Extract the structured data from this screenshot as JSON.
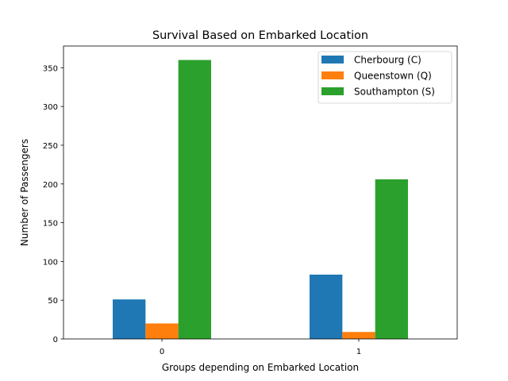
{
  "chart_data": {
    "type": "bar",
    "title": "Survival Based on Embarked Location",
    "xlabel": "Groups depending on Embarked Location",
    "ylabel": "Number of Passengers",
    "categories": [
      "0",
      "1"
    ],
    "ylim": [
      0,
      378
    ],
    "yticks": [
      0,
      50,
      100,
      150,
      200,
      250,
      300,
      350
    ],
    "legend_position": "top-right",
    "series": [
      {
        "name": "Cherbourg (C)",
        "color": "#1f77b4",
        "values": [
          51,
          83
        ]
      },
      {
        "name": "Queenstown (Q)",
        "color": "#ff7f0e",
        "values": [
          20,
          9
        ]
      },
      {
        "name": "Southampton (S)",
        "color": "#2ca02c",
        "values": [
          360,
          206
        ]
      }
    ]
  }
}
